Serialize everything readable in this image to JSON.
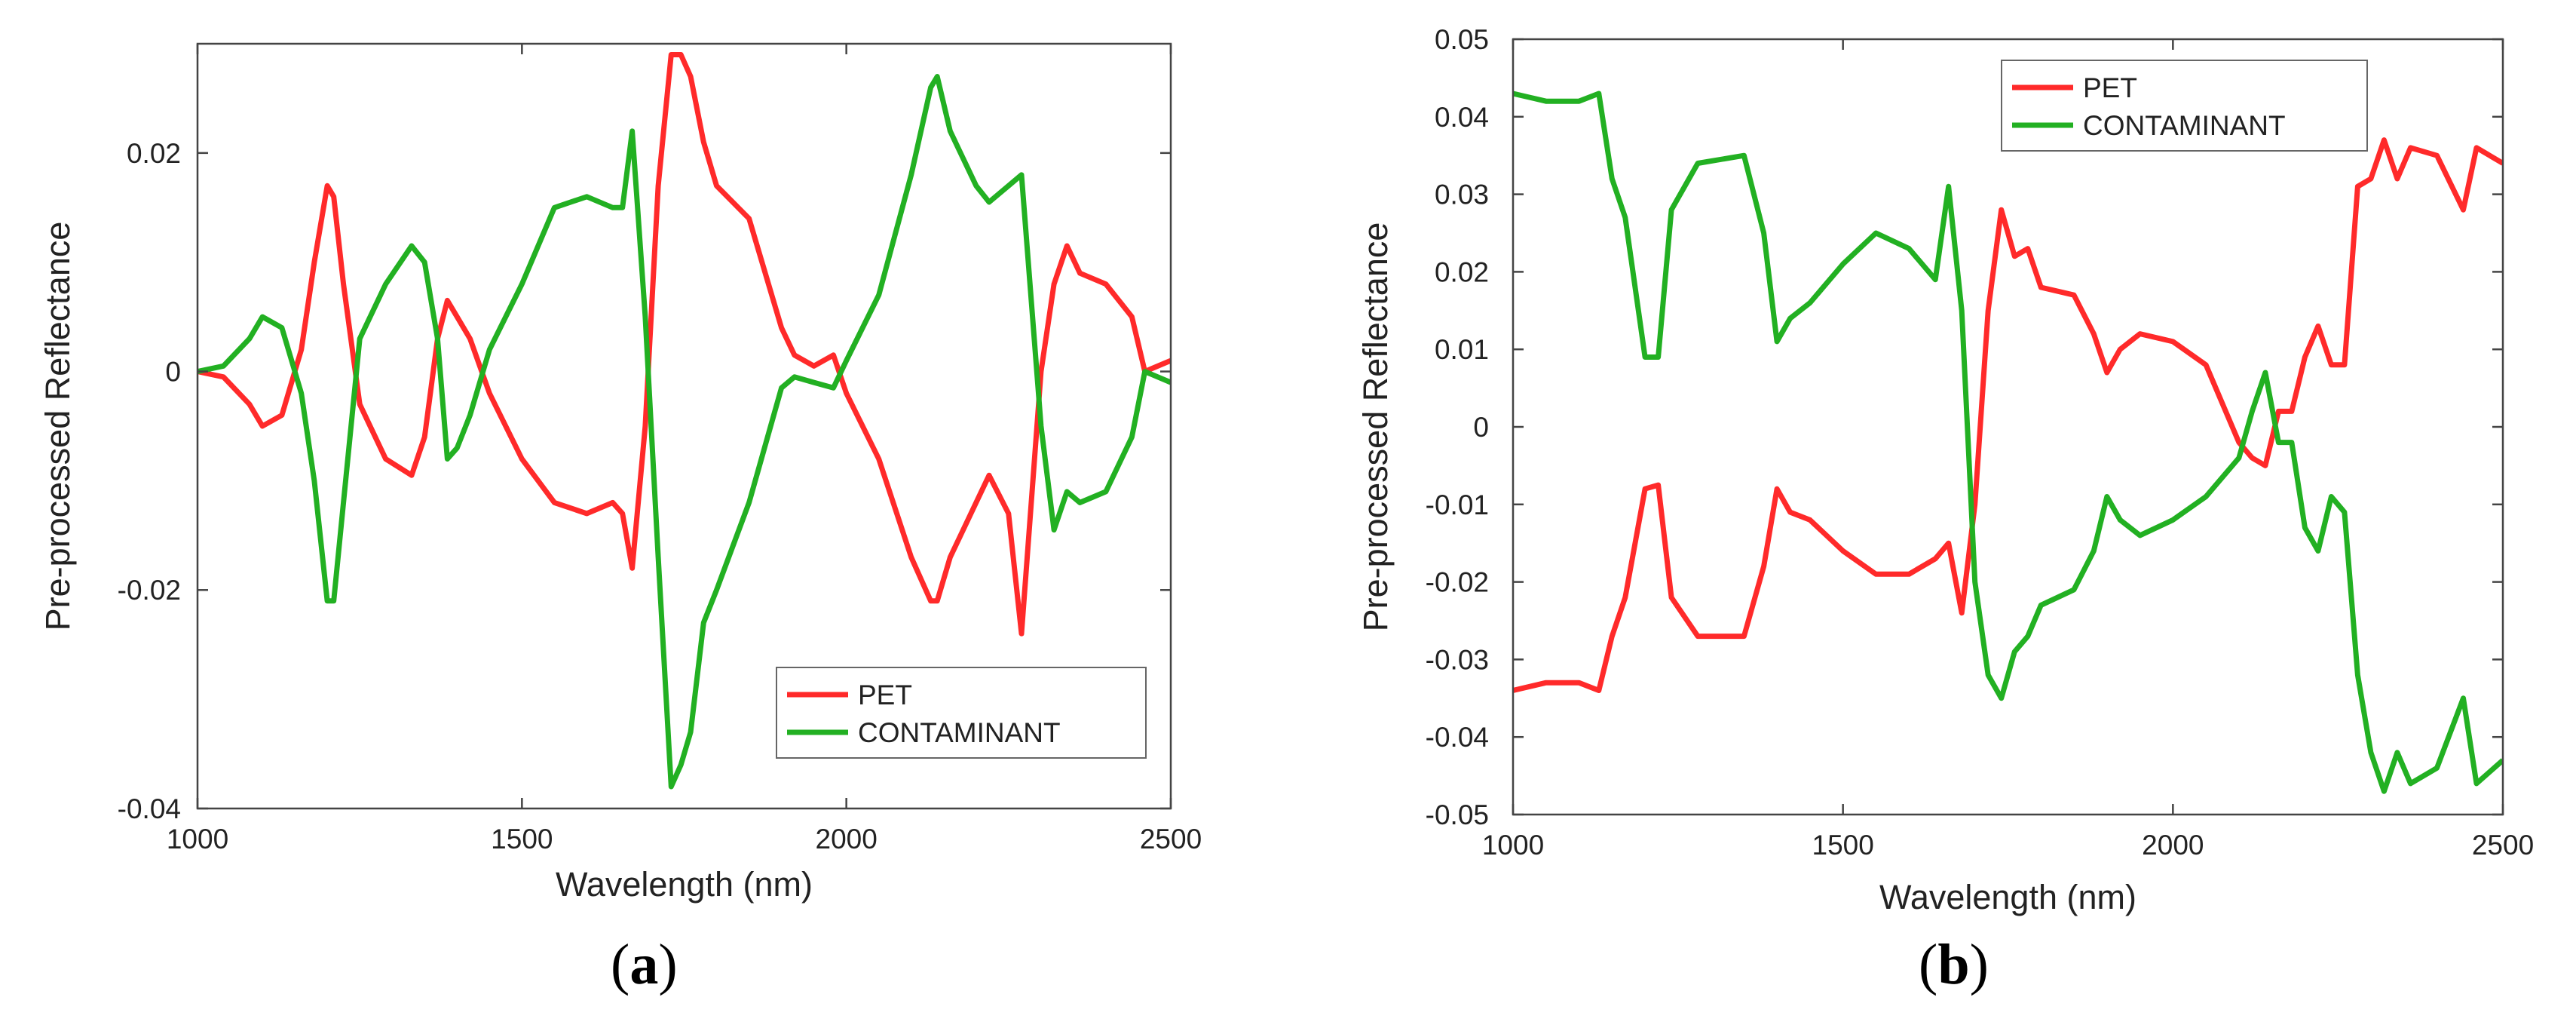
{
  "panels": [
    {
      "label_open": "(",
      "label_letter": "a",
      "label_close": ")"
    },
    {
      "label_open": "(",
      "label_letter": "b",
      "label_close": ")"
    }
  ],
  "chart_data": [
    {
      "type": "line",
      "id": "a",
      "title": "",
      "xlabel": "Wavelength (nm)",
      "ylabel": "Pre-processed Reflectance",
      "xlim": [
        1000,
        2500
      ],
      "ylim": [
        -0.04,
        0.03
      ],
      "xticks": [
        1000,
        1500,
        2000,
        2500
      ],
      "xtick_labels": [
        "1000",
        "1500",
        "2000",
        "2500"
      ],
      "yticks": [
        -0.04,
        -0.02,
        0,
        0.02
      ],
      "ytick_labels": [
        "-0.04",
        "-0.02",
        "0",
        "0.02"
      ],
      "grid": false,
      "legend_position": "bottom-right",
      "series": [
        {
          "name": "PET",
          "color": "#ff2a2a",
          "x": [
            1000,
            1040,
            1080,
            1100,
            1130,
            1160,
            1180,
            1200,
            1210,
            1225,
            1250,
            1290,
            1330,
            1350,
            1370,
            1385,
            1400,
            1420,
            1450,
            1500,
            1550,
            1600,
            1640,
            1655,
            1670,
            1690,
            1710,
            1730,
            1745,
            1760,
            1780,
            1800,
            1850,
            1900,
            1920,
            1950,
            1980,
            2000,
            2050,
            2100,
            2130,
            2140,
            2160,
            2200,
            2220,
            2250,
            2270,
            2300,
            2320,
            2340,
            2360,
            2400,
            2440,
            2460,
            2500
          ],
          "y": [
            0,
            -0.0005,
            -0.003,
            -0.005,
            -0.004,
            0.002,
            0.01,
            0.017,
            0.016,
            0.008,
            -0.003,
            -0.008,
            -0.0095,
            -0.006,
            0.003,
            0.0065,
            0.005,
            0.003,
            -0.002,
            -0.008,
            -0.012,
            -0.013,
            -0.012,
            -0.013,
            -0.018,
            -0.005,
            0.017,
            0.029,
            0.029,
            0.027,
            0.021,
            0.017,
            0.014,
            0.004,
            0.0015,
            0.0005,
            0.0015,
            -0.002,
            -0.008,
            -0.017,
            -0.021,
            -0.021,
            -0.017,
            -0.012,
            -0.0095,
            -0.013,
            -0.024,
            0,
            0.008,
            0.0115,
            0.009,
            0.008,
            0.005,
            0,
            0.001
          ]
        },
        {
          "name": "CONTAMINANT",
          "color": "#22b022",
          "x": [
            1000,
            1040,
            1080,
            1100,
            1130,
            1160,
            1180,
            1200,
            1210,
            1225,
            1250,
            1290,
            1330,
            1350,
            1370,
            1385,
            1400,
            1420,
            1450,
            1500,
            1550,
            1600,
            1640,
            1655,
            1670,
            1690,
            1710,
            1730,
            1745,
            1760,
            1780,
            1800,
            1850,
            1900,
            1920,
            1950,
            1980,
            2000,
            2050,
            2100,
            2130,
            2140,
            2160,
            2200,
            2220,
            2250,
            2270,
            2300,
            2320,
            2340,
            2360,
            2400,
            2440,
            2460,
            2500
          ],
          "y": [
            0,
            0.0005,
            0.003,
            0.005,
            0.004,
            -0.002,
            -0.01,
            -0.021,
            -0.021,
            -0.012,
            0.003,
            0.008,
            0.0115,
            0.01,
            0.003,
            -0.008,
            -0.007,
            -0.004,
            0.002,
            0.008,
            0.015,
            0.016,
            0.015,
            0.015,
            0.022,
            0.005,
            -0.017,
            -0.038,
            -0.036,
            -0.033,
            -0.023,
            -0.02,
            -0.012,
            -0.0015,
            -0.0005,
            -0.001,
            -0.0015,
            0.001,
            0.007,
            0.018,
            0.026,
            0.027,
            0.022,
            0.017,
            0.0155,
            0.017,
            0.018,
            -0.005,
            -0.0145,
            -0.011,
            -0.012,
            -0.011,
            -0.006,
            0,
            -0.001
          ]
        }
      ]
    },
    {
      "type": "line",
      "id": "b",
      "title": "",
      "xlabel": "Wavelength (nm)",
      "ylabel": "Pre-processed Reflectance",
      "xlim": [
        1000,
        2500
      ],
      "ylim": [
        -0.05,
        0.05
      ],
      "xticks": [
        1000,
        1500,
        2000,
        2500
      ],
      "xtick_labels": [
        "1000",
        "1500",
        "2000",
        "2500"
      ],
      "yticks": [
        -0.05,
        -0.04,
        -0.03,
        -0.02,
        -0.01,
        0,
        0.01,
        0.02,
        0.03,
        0.04,
        0.05
      ],
      "ytick_labels": [
        "-0.05",
        "-0.04",
        "-0.03",
        "-0.02",
        "-0.01",
        "0",
        "0.01",
        "0.02",
        "0.03",
        "0.04",
        "0.05"
      ],
      "grid": false,
      "legend_position": "top-center",
      "series": [
        {
          "name": "PET",
          "color": "#ff2a2a",
          "x": [
            1000,
            1050,
            1100,
            1130,
            1150,
            1170,
            1200,
            1220,
            1240,
            1280,
            1350,
            1380,
            1400,
            1420,
            1450,
            1500,
            1550,
            1600,
            1640,
            1660,
            1680,
            1700,
            1720,
            1740,
            1760,
            1780,
            1800,
            1850,
            1880,
            1900,
            1920,
            1950,
            2000,
            2050,
            2100,
            2120,
            2140,
            2160,
            2180,
            2200,
            2220,
            2240,
            2260,
            2280,
            2300,
            2320,
            2340,
            2360,
            2400,
            2440,
            2460,
            2500
          ],
          "y": [
            -0.034,
            -0.033,
            -0.033,
            -0.034,
            -0.027,
            -0.022,
            -0.008,
            -0.0075,
            -0.022,
            -0.027,
            -0.027,
            -0.018,
            -0.008,
            -0.011,
            -0.012,
            -0.016,
            -0.019,
            -0.019,
            -0.017,
            -0.015,
            -0.024,
            -0.01,
            0.015,
            0.028,
            0.022,
            0.023,
            0.018,
            0.017,
            0.012,
            0.007,
            0.01,
            0.012,
            0.011,
            0.008,
            -0.002,
            -0.004,
            -0.005,
            0.002,
            0.002,
            0.009,
            0.013,
            0.008,
            0.008,
            0.031,
            0.032,
            0.037,
            0.032,
            0.036,
            0.035,
            0.028,
            0.036,
            0.034
          ]
        },
        {
          "name": "CONTAMINANT",
          "color": "#22b022",
          "x": [
            1000,
            1050,
            1100,
            1130,
            1150,
            1170,
            1200,
            1220,
            1240,
            1280,
            1350,
            1380,
            1400,
            1420,
            1450,
            1500,
            1550,
            1600,
            1640,
            1660,
            1680,
            1700,
            1720,
            1740,
            1760,
            1780,
            1800,
            1850,
            1880,
            1900,
            1920,
            1950,
            2000,
            2050,
            2100,
            2120,
            2140,
            2160,
            2180,
            2200,
            2220,
            2240,
            2260,
            2280,
            2300,
            2320,
            2340,
            2360,
            2400,
            2440,
            2460,
            2500
          ],
          "y": [
            0.043,
            0.042,
            0.042,
            0.043,
            0.032,
            0.027,
            0.009,
            0.009,
            0.028,
            0.034,
            0.035,
            0.025,
            0.011,
            0.014,
            0.016,
            0.021,
            0.025,
            0.023,
            0.019,
            0.031,
            0.015,
            -0.02,
            -0.032,
            -0.035,
            -0.029,
            -0.027,
            -0.023,
            -0.021,
            -0.016,
            -0.009,
            -0.012,
            -0.014,
            -0.012,
            -0.009,
            -0.004,
            0.002,
            0.007,
            -0.002,
            -0.002,
            -0.013,
            -0.016,
            -0.009,
            -0.011,
            -0.032,
            -0.042,
            -0.047,
            -0.042,
            -0.046,
            -0.044,
            -0.035,
            -0.046,
            -0.043
          ]
        }
      ]
    }
  ]
}
